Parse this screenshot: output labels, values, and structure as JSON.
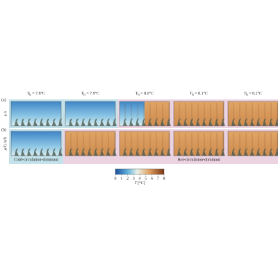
{
  "columns": [
    {
      "symbol": "T",
      "sub": "h",
      "value": " = 7.8°C"
    },
    {
      "symbol": "T",
      "sub": "h",
      "value": " = 7.9°C"
    },
    {
      "symbol": "T",
      "sub": "h",
      "value": " = 8.0°C"
    },
    {
      "symbol": "T",
      "sub": "h",
      "value": " = 8.1°C"
    },
    {
      "symbol": "T",
      "sub": "h",
      "value": " = 8.2°C"
    }
  ],
  "rows": [
    {
      "tag": "(a)",
      "label": "μ, k"
    },
    {
      "tag": "(b)",
      "label": "μ(T), k(T)"
    }
  ],
  "regions": {
    "cold": "Cold-circulation-dominant",
    "hot": "Hot-circulation-dominant"
  },
  "colorbar": {
    "ticks": [
      0,
      1,
      2,
      3,
      4,
      5,
      6,
      7,
      8
    ],
    "symbol": "T",
    "unit": "[°C]"
  }
}
